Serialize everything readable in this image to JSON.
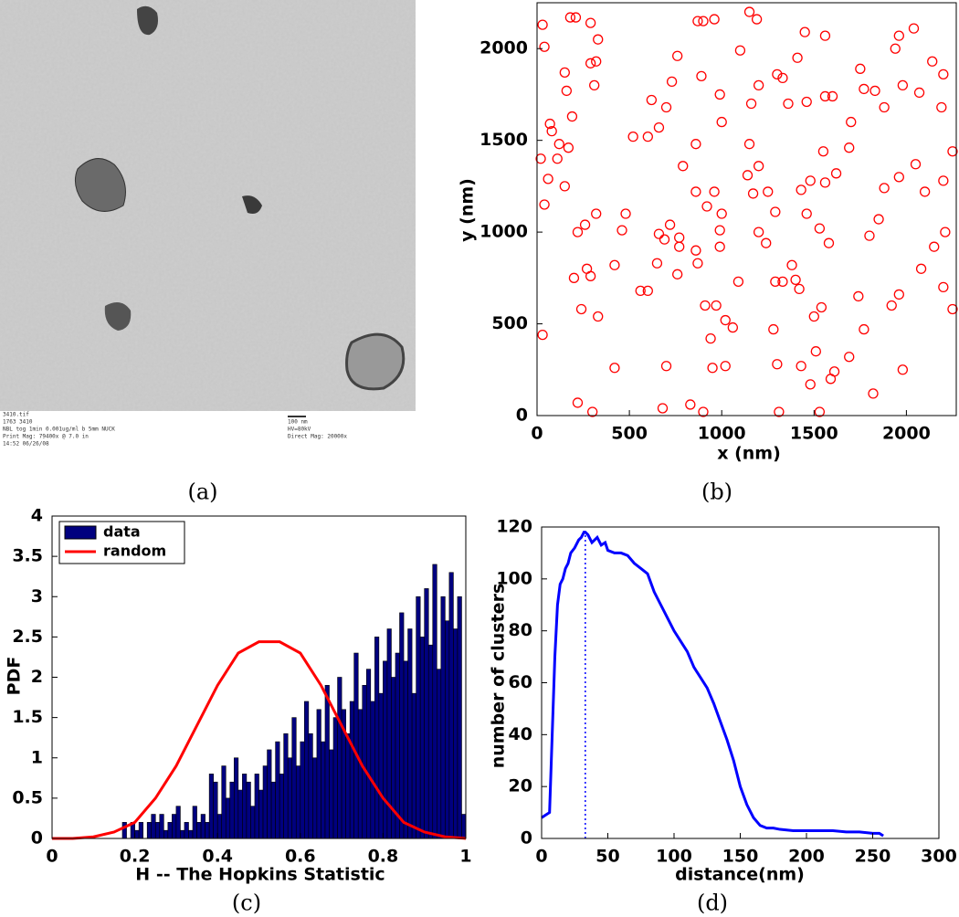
{
  "micrograph": {
    "caption": "(a)",
    "labels": [
      "3410.tif",
      "1763 3410",
      "NBL tog 1min 0.001ug/ml b 5mm NUCK",
      "Print Mag: 79400x @ 7.0 in",
      "14:52 06/26/08",
      "100 nm",
      "HV=80kV",
      "Direct Mag: 20000x"
    ]
  },
  "chart_data": [
    {
      "type": "scatter",
      "caption": "(b)",
      "x_label": "x (nm)",
      "y_label": "y (nm)",
      "xlim": [
        0,
        2270
      ],
      "ylim": [
        0,
        2250
      ],
      "xticks": [
        0,
        500,
        1000,
        1500,
        2000
      ],
      "yticks": [
        0,
        500,
        1000,
        1500,
        2000
      ],
      "series": [
        {
          "color": "#ff0000",
          "x": [
            30,
            40,
            180,
            210,
            290,
            330,
            290,
            320,
            310,
            150,
            160,
            70,
            80,
            120,
            170,
            190,
            110,
            150,
            60,
            40,
            20,
            220,
            260,
            320,
            270,
            290,
            200,
            240,
            330,
            30,
            220,
            300,
            420,
            420,
            480,
            460,
            520,
            600,
            620,
            700,
            660,
            730,
            760,
            870,
            900,
            960,
            890,
            990,
            1000,
            860,
            790,
            860,
            960,
            920,
            1000,
            990,
            770,
            770,
            860,
            990,
            870,
            760,
            650,
            560,
            600,
            690,
            720,
            660,
            910,
            970,
            1020,
            1060,
            1090,
            940,
            1020,
            950,
            830,
            680,
            700,
            900,
            1150,
            1190,
            1100,
            1200,
            1160,
            1150,
            1140,
            1200,
            1170,
            1250,
            1200,
            1240,
            1290,
            1300,
            1330,
            1360,
            1410,
            1450,
            1460,
            1560,
            1600,
            1700,
            1690,
            1550,
            1480,
            1560,
            1430,
            1460,
            1530,
            1580,
            1380,
            1400,
            1420,
            1290,
            1330,
            1280,
            1500,
            1540,
            1510,
            1480,
            1430,
            1300,
            1310,
            1530,
            1610,
            1590,
            1770,
            1820,
            1740,
            1800,
            1850,
            1880,
            1960,
            2050,
            2100,
            2200,
            2250,
            2190,
            2070,
            1980,
            1940,
            1960,
            2040,
            2140,
            2200,
            2210,
            2150,
            2080,
            2200,
            2250,
            1960,
            1920,
            1980,
            1690,
            1880,
            1770,
            1830,
            1620,
            1750,
            1560
          ],
          "values": [
            2130,
            2010,
            2170,
            2170,
            2140,
            2050,
            1920,
            1930,
            1800,
            1870,
            1770,
            1590,
            1550,
            1480,
            1460,
            1630,
            1400,
            1250,
            1290,
            1150,
            1400,
            1000,
            1040,
            1100,
            800,
            760,
            750,
            580,
            540,
            440,
            70,
            20,
            260,
            820,
            1100,
            1010,
            1520,
            1520,
            1720,
            1680,
            1570,
            1820,
            1960,
            2150,
            2150,
            2160,
            1850,
            1750,
            1600,
            1480,
            1360,
            1220,
            1220,
            1140,
            1100,
            1010,
            970,
            920,
            900,
            920,
            830,
            770,
            830,
            680,
            680,
            960,
            1040,
            990,
            600,
            600,
            520,
            480,
            730,
            420,
            270,
            260,
            60,
            40,
            270,
            20,
            2200,
            2160,
            1990,
            1800,
            1700,
            1480,
            1310,
            1360,
            1210,
            1220,
            1000,
            940,
            1110,
            1860,
            1840,
            1700,
            1950,
            2090,
            1710,
            1740,
            1740,
            1600,
            1460,
            1440,
            1280,
            1270,
            1230,
            1100,
            1020,
            940,
            820,
            740,
            690,
            730,
            730,
            470,
            540,
            590,
            350,
            170,
            270,
            280,
            20,
            20,
            240,
            200,
            470,
            120,
            650,
            980,
            1070,
            1240,
            1300,
            1370,
            1220,
            1280,
            1440,
            1680,
            1760,
            1800,
            2000,
            2070,
            2110,
            1930,
            1860,
            1000,
            920,
            800,
            700,
            580,
            660,
            600,
            250,
            320,
            1680,
            1780,
            1770,
            1320,
            1890,
            2070
          ]
        }
      ]
    },
    {
      "type": "histogram",
      "caption": "(c)",
      "x_label": "H -- The Hopkins Statistic",
      "y_label": "PDF",
      "legend": "upper left",
      "xlim": [
        0,
        1
      ],
      "ylim": [
        0,
        4
      ],
      "xticks": [
        0,
        0.2,
        0.4,
        0.6,
        0.8,
        1
      ],
      "yticks": [
        0,
        0.5,
        1,
        1.5,
        2,
        2.5,
        3,
        3.5,
        4
      ],
      "bins": [
        0.17,
        0.18,
        0.19,
        0.2,
        0.21,
        0.22,
        0.23,
        0.24,
        0.25,
        0.26,
        0.27,
        0.28,
        0.29,
        0.3,
        0.31,
        0.32,
        0.33,
        0.34,
        0.35,
        0.36,
        0.37,
        0.38,
        0.39,
        0.4,
        0.41,
        0.42,
        0.43,
        0.44,
        0.45,
        0.46,
        0.47,
        0.48,
        0.49,
        0.5,
        0.51,
        0.52,
        0.53,
        0.54,
        0.55,
        0.56,
        0.57,
        0.58,
        0.59,
        0.6,
        0.61,
        0.62,
        0.63,
        0.64,
        0.65,
        0.66,
        0.67,
        0.68,
        0.69,
        0.7,
        0.71,
        0.72,
        0.73,
        0.74,
        0.75,
        0.76,
        0.77,
        0.78,
        0.79,
        0.8,
        0.81,
        0.82,
        0.83,
        0.84,
        0.85,
        0.86,
        0.87,
        0.88,
        0.89,
        0.9,
        0.91,
        0.92,
        0.93,
        0.94,
        0.95,
        0.96,
        0.97,
        0.98,
        0.99,
        1.0
      ],
      "series": [
        {
          "name": "data",
          "color": "#00007f",
          "values": [
            0.2,
            0,
            0.2,
            0.1,
            0.2,
            0,
            0.2,
            0.3,
            0.2,
            0.3,
            0.1,
            0.2,
            0.3,
            0.4,
            0.1,
            0.2,
            0.1,
            0.4,
            0.2,
            0.3,
            0.2,
            0.8,
            0.7,
            0.3,
            0.9,
            0.5,
            0.7,
            1.0,
            0.6,
            0.8,
            0.7,
            0.4,
            0.8,
            0.6,
            0.9,
            1.1,
            0.7,
            1.2,
            0.8,
            1.3,
            1.0,
            1.5,
            0.9,
            1.2,
            1.7,
            1.3,
            1.0,
            1.6,
            1.2,
            1.9,
            1.1,
            1.5,
            2.0,
            1.6,
            1.3,
            1.7,
            2.3,
            1.6,
            1.9,
            2.1,
            1.7,
            2.5,
            1.8,
            2.2,
            2.6,
            2.0,
            2.3,
            2.8,
            2.2,
            2.6,
            1.8,
            3.0,
            2.5,
            3.1,
            2.4,
            3.4,
            2.1,
            3.0,
            2.7,
            3.3,
            2.6,
            3.0,
            0.3
          ]
        },
        {
          "name": "random",
          "color": "#ff0000",
          "x": [
            0,
            0.05,
            0.1,
            0.15,
            0.2,
            0.25,
            0.3,
            0.35,
            0.4,
            0.45,
            0.5,
            0.55,
            0.6,
            0.65,
            0.7,
            0.75,
            0.8,
            0.85,
            0.9,
            0.95,
            1.0
          ],
          "values": [
            0,
            0,
            0.02,
            0.08,
            0.2,
            0.5,
            0.9,
            1.4,
            1.9,
            2.3,
            2.44,
            2.44,
            2.3,
            1.9,
            1.4,
            0.9,
            0.5,
            0.2,
            0.08,
            0.02,
            0
          ]
        }
      ]
    },
    {
      "type": "line",
      "caption": "(d)",
      "x_label": "distance(nm)",
      "y_label": "number of clusters",
      "marker_x": 33,
      "xlim": [
        0,
        300
      ],
      "ylim": [
        0,
        120
      ],
      "xticks": [
        0,
        50,
        100,
        150,
        200,
        250,
        300
      ],
      "yticks": [
        0,
        20,
        40,
        60,
        80,
        100,
        120
      ],
      "series": [
        {
          "color": "#0000ff",
          "x": [
            0,
            3,
            6,
            8,
            10,
            12,
            14,
            16,
            18,
            20,
            22,
            25,
            28,
            30,
            32,
            33,
            35,
            38,
            40,
            42,
            45,
            48,
            50,
            55,
            60,
            65,
            70,
            75,
            80,
            85,
            90,
            95,
            100,
            105,
            110,
            115,
            120,
            125,
            130,
            135,
            140,
            145,
            150,
            155,
            160,
            165,
            170,
            175,
            180,
            190,
            200,
            210,
            220,
            230,
            240,
            250,
            255,
            258
          ],
          "values": [
            8,
            9,
            10,
            40,
            70,
            90,
            98,
            100,
            104,
            106,
            110,
            112,
            115,
            116,
            118,
            118,
            117,
            114,
            115,
            116,
            113,
            114,
            111,
            110,
            110,
            109,
            106,
            104,
            102,
            95,
            90,
            85,
            80,
            76,
            72,
            66,
            62,
            58,
            52,
            45,
            38,
            30,
            20,
            13,
            8,
            5,
            4,
            4,
            3.5,
            3,
            3,
            3,
            3,
            2.5,
            2.5,
            2,
            2,
            1
          ]
        }
      ]
    }
  ]
}
